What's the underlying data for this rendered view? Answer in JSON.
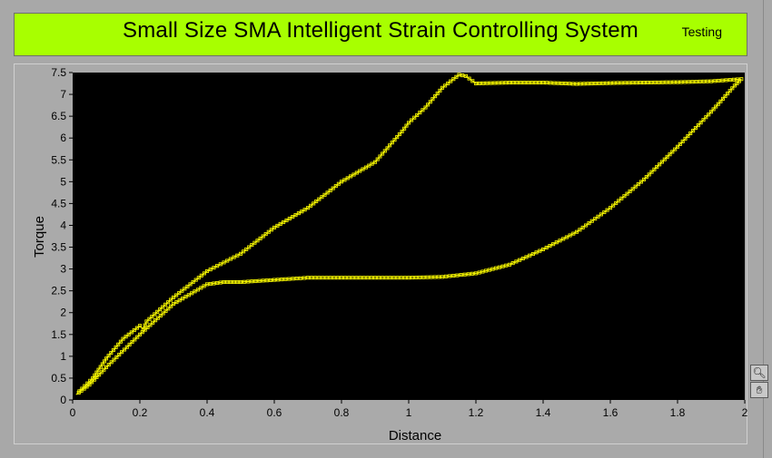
{
  "header": {
    "title": "Small Size SMA Intelligent Strain Controlling System",
    "status": "Testing"
  },
  "graph_tools": {
    "zoom_icon": "zoom-icon",
    "pan_icon": "hand-icon"
  },
  "colors": {
    "title_bg": "#a8ff00",
    "plot_bg": "#000000",
    "trace": "#f0f000"
  },
  "chart_data": {
    "type": "scatter",
    "xlabel": "Distance",
    "ylabel": "Torque",
    "xlim": [
      0,
      2
    ],
    "ylim": [
      0,
      7.5
    ],
    "x_ticks": [
      "0",
      "0.2",
      "0.4",
      "0.6",
      "0.8",
      "1",
      "1.2",
      "1.4",
      "1.6",
      "1.8",
      "2"
    ],
    "y_ticks": [
      "0",
      "0.5",
      "1",
      "1.5",
      "2",
      "2.5",
      "3",
      "3.5",
      "4",
      "4.5",
      "5",
      "5.5",
      "6",
      "6.5",
      "7",
      "7.5"
    ],
    "grid": false,
    "series": [
      {
        "points": [
          [
            0.02,
            0.2
          ],
          [
            0.06,
            0.5
          ],
          [
            0.1,
            0.95
          ],
          [
            0.15,
            1.4
          ],
          [
            0.2,
            1.7
          ],
          [
            0.21,
            1.62
          ],
          [
            0.22,
            1.8
          ],
          [
            0.3,
            2.35
          ],
          [
            0.4,
            2.95
          ],
          [
            0.5,
            3.35
          ],
          [
            0.6,
            3.95
          ],
          [
            0.7,
            4.4
          ],
          [
            0.8,
            5.0
          ],
          [
            0.9,
            5.45
          ],
          [
            0.98,
            6.15
          ],
          [
            1.0,
            6.35
          ],
          [
            1.05,
            6.7
          ],
          [
            1.1,
            7.15
          ],
          [
            1.15,
            7.45
          ],
          [
            1.17,
            7.42
          ],
          [
            1.2,
            7.25
          ],
          [
            1.3,
            7.27
          ],
          [
            1.4,
            7.27
          ],
          [
            1.5,
            7.24
          ],
          [
            1.6,
            7.26
          ],
          [
            1.7,
            7.27
          ],
          [
            1.8,
            7.28
          ],
          [
            1.9,
            7.3
          ],
          [
            1.99,
            7.35
          ]
        ]
      },
      {
        "points": [
          [
            1.99,
            7.35
          ],
          [
            1.97,
            7.2
          ],
          [
            1.9,
            6.6
          ],
          [
            1.8,
            5.8
          ],
          [
            1.7,
            5.05
          ],
          [
            1.6,
            4.4
          ],
          [
            1.5,
            3.85
          ],
          [
            1.4,
            3.45
          ],
          [
            1.3,
            3.1
          ],
          [
            1.2,
            2.9
          ],
          [
            1.1,
            2.82
          ],
          [
            1.0,
            2.8
          ],
          [
            0.9,
            2.8
          ],
          [
            0.8,
            2.8
          ],
          [
            0.7,
            2.8
          ],
          [
            0.6,
            2.75
          ],
          [
            0.5,
            2.7
          ],
          [
            0.45,
            2.7
          ],
          [
            0.4,
            2.65
          ],
          [
            0.3,
            2.2
          ],
          [
            0.2,
            1.5
          ],
          [
            0.1,
            0.75
          ],
          [
            0.05,
            0.35
          ],
          [
            0.01,
            0.12
          ]
        ]
      }
    ]
  }
}
